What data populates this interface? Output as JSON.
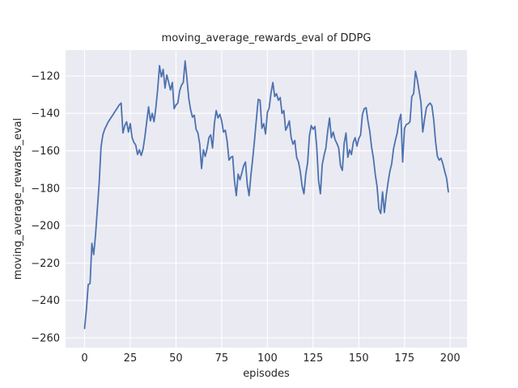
{
  "chart_data": {
    "type": "line",
    "title": "moving_average_rewards_eval of DDPG",
    "xlabel": "episodes",
    "ylabel": "moving_average_rewards_eval",
    "x_ticks": [
      0,
      25,
      50,
      75,
      100,
      125,
      150,
      175,
      200
    ],
    "y_ticks": [
      -120,
      -140,
      -160,
      -180,
      -200,
      -220,
      -240,
      -260
    ],
    "xlim": [
      -10.4,
      209.2
    ],
    "ylim": [
      -265.2,
      -106.2
    ],
    "grid": true,
    "legend": false,
    "line_color": "#4C72B0",
    "plot_bg": "#EAEAF2",
    "grid_color": "#ffffff",
    "x_description": "episode index 0-199, one point per episode",
    "series": [
      {
        "name": "moving_average_rewards_eval",
        "values": [
          -255,
          -245,
          -231.5,
          -231,
          -209.5,
          -215.5,
          -205,
          -191,
          -177,
          -158,
          -151.5,
          -148.5,
          -146.5,
          -144.5,
          -143,
          -141.5,
          -140,
          -138.5,
          -137,
          -135.5,
          -134.5,
          -150.5,
          -146.5,
          -144.5,
          -150,
          -145.5,
          -153,
          -155.5,
          -157,
          -162,
          -159.5,
          -162.5,
          -159,
          -152.5,
          -144.5,
          -136.5,
          -144,
          -140,
          -144.5,
          -137,
          -127,
          -114.5,
          -120.5,
          -116.5,
          -126.5,
          -119.5,
          -123.5,
          -127.5,
          -123.5,
          -137.5,
          -135.5,
          -134.5,
          -128,
          -125,
          -123.5,
          -112,
          -121.5,
          -132,
          -138,
          -142,
          -141,
          -148.5,
          -150.5,
          -156.5,
          -169.5,
          -159.5,
          -163,
          -159,
          -153,
          -151.5,
          -158.5,
          -145.5,
          -138.5,
          -142.5,
          -140.5,
          -144,
          -150,
          -149,
          -155,
          -165,
          -163.5,
          -163,
          -176,
          -184,
          -172.5,
          -175.5,
          -172,
          -168,
          -166,
          -178,
          -184,
          -173,
          -164,
          -154,
          -143,
          -132.5,
          -133,
          -148,
          -145.5,
          -151,
          -139.5,
          -137,
          -129,
          -123.5,
          -131,
          -129.5,
          -133,
          -131.5,
          -140,
          -138.5,
          -149,
          -147,
          -144,
          -153,
          -156.5,
          -154.5,
          -163.5,
          -166,
          -171,
          -179,
          -183,
          -172.5,
          -166.5,
          -152,
          -146.5,
          -148.5,
          -147,
          -158,
          -176,
          -183,
          -167.5,
          -162.5,
          -158.5,
          -149.5,
          -142.5,
          -153,
          -150,
          -154,
          -156,
          -158.5,
          -168,
          -170.5,
          -156,
          -150.5,
          -163.5,
          -159.5,
          -162,
          -155.5,
          -153,
          -157.5,
          -153.5,
          -151.5,
          -140.5,
          -137.5,
          -137,
          -144,
          -149.5,
          -158,
          -164,
          -172.5,
          -179,
          -191,
          -193.5,
          -182,
          -193,
          -184,
          -177,
          -171,
          -167,
          -159,
          -154.5,
          -150.5,
          -144,
          -140.5,
          -166,
          -148,
          -146,
          -145.5,
          -144.5,
          -131,
          -129.5,
          -117.5,
          -122,
          -128,
          -134,
          -150,
          -143,
          -137,
          -135.5,
          -134.5,
          -136,
          -143.5,
          -155,
          -163,
          -165,
          -164,
          -167,
          -171,
          -174.5,
          -182
        ]
      }
    ]
  }
}
